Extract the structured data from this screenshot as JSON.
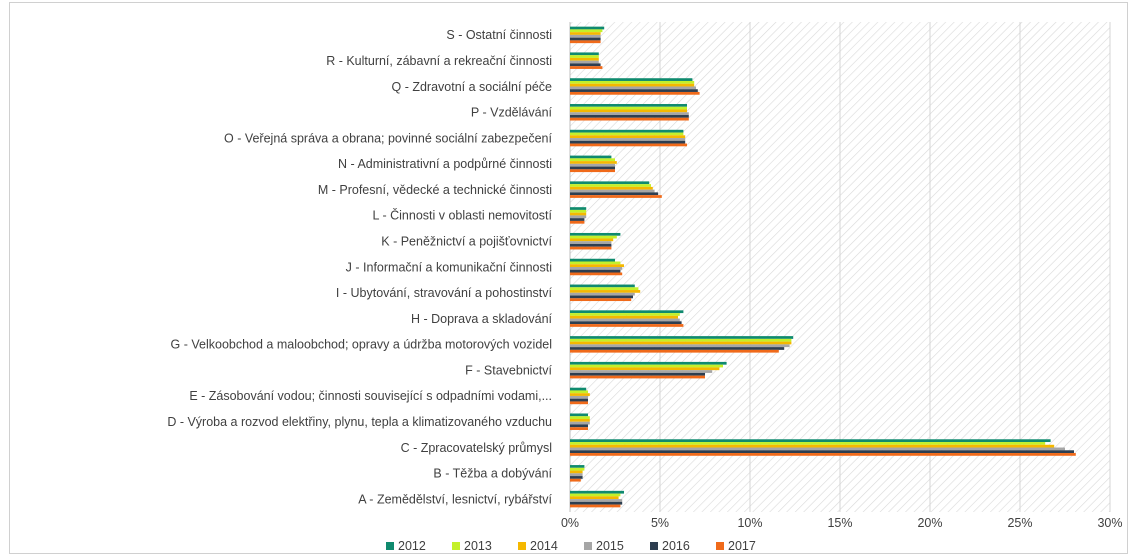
{
  "chart_data": {
    "type": "bar",
    "orientation": "horizontal",
    "categories": [
      "S - Ostatní činnosti",
      "R - Kulturní, zábavní a rekreační činnosti",
      "Q - Zdravotní a sociální péče",
      "P - Vzdělávání",
      "O - Veřejná správa a obrana; povinné sociální zabezpečení",
      "N - Administrativní a podpůrné činnosti",
      "M - Profesní, vědecké a technické činnosti",
      "L - Činnosti v oblasti nemovitostí",
      "K - Peněžnictví a pojišťovnictví",
      "J - Informační a komunikační činnosti",
      "I - Ubytování, stravování a pohostinství",
      "H - Doprava a skladování",
      "G - Velkoobchod a maloobchod; opravy a údržba motorových vozidel",
      "F - Stavebnictví",
      "E - Zásobování vodou; činnosti související s odpadními vodami,...",
      "D - Výroba a rozvod elektřiny, plynu, tepla a klimatizovaného vzduchu",
      "C - Zpracovatelský průmysl",
      "B - Těžba a dobývání",
      "A - Zemědělství, lesnictví, rybářství"
    ],
    "series": [
      {
        "name": "2012",
        "color": "#0f8a6e",
        "values": [
          1.9,
          1.6,
          6.8,
          6.5,
          6.3,
          2.3,
          4.4,
          0.9,
          2.8,
          2.5,
          3.6,
          6.3,
          12.4,
          8.7,
          0.9,
          1.0,
          26.7,
          0.8,
          3.0
        ]
      },
      {
        "name": "2013",
        "color": "#c4f02a",
        "values": [
          1.8,
          1.6,
          6.9,
          6.5,
          6.3,
          2.5,
          4.5,
          0.9,
          2.6,
          2.8,
          3.8,
          6.1,
          12.3,
          8.5,
          1.0,
          1.1,
          26.4,
          0.8,
          2.8
        ]
      },
      {
        "name": "2014",
        "color": "#f5b800",
        "values": [
          1.7,
          1.6,
          6.9,
          6.5,
          6.4,
          2.6,
          4.6,
          0.9,
          2.4,
          3.0,
          3.9,
          6.0,
          12.3,
          8.3,
          1.1,
          1.1,
          26.9,
          0.7,
          2.7
        ]
      },
      {
        "name": "2015",
        "color": "#a6a6a6",
        "values": [
          1.7,
          1.6,
          7.0,
          6.6,
          6.4,
          2.5,
          4.7,
          0.9,
          2.3,
          2.9,
          3.6,
          6.1,
          12.2,
          7.9,
          1.0,
          1.1,
          27.5,
          0.7,
          2.9
        ]
      },
      {
        "name": "2016",
        "color": "#2d3e50",
        "values": [
          1.7,
          1.7,
          7.1,
          6.6,
          6.4,
          2.5,
          4.9,
          0.8,
          2.3,
          2.8,
          3.5,
          6.2,
          11.9,
          7.5,
          1.0,
          1.0,
          28.0,
          0.7,
          2.9
        ]
      },
      {
        "name": "2017",
        "color": "#f06a1a",
        "values": [
          1.7,
          1.8,
          7.2,
          6.6,
          6.5,
          2.5,
          5.1,
          0.8,
          2.3,
          2.9,
          3.4,
          6.3,
          11.6,
          7.5,
          1.0,
          1.0,
          28.1,
          0.6,
          2.8
        ]
      }
    ],
    "xlim": [
      0,
      30
    ],
    "x_ticks": [
      "0%",
      "5%",
      "10%",
      "15%",
      "20%",
      "25%",
      "30%"
    ],
    "title": "",
    "xlabel": "",
    "ylabel": "",
    "grid": true,
    "legend_position": "bottom"
  }
}
